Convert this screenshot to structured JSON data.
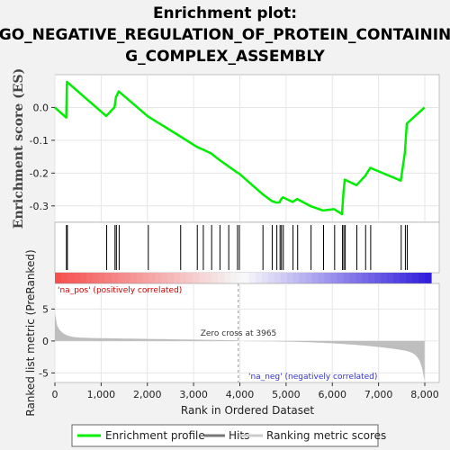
{
  "title_line1": "Enrichment plot:",
  "title_line2": "GO_NEGATIVE_REGULATION_OF_PROTEIN_CONTAININ",
  "title_line3": "G_COMPLEX_ASSEMBLY",
  "es_ylabel": "Enrichment score (ES)",
  "metric_ylabel": "Ranked list metric (PreRanked)",
  "xlabel": "Rank in Ordered Dataset",
  "pos_label": "'na_pos' (positively correlated)",
  "neg_label": "'na_neg' (negatively correlated)",
  "zero_cross_label": "Zero cross at 3965",
  "legend": {
    "enrichment": "Enrichment profile",
    "hits": "Hits",
    "ranking": "Ranking metric scores"
  },
  "colors": {
    "enrichment_line": "#00ee00",
    "hits": "#000000",
    "ranking_fill": "#bebebe",
    "pos_label": "#cc0000",
    "neg_label": "#3333cc"
  },
  "chart_data": {
    "type": "line",
    "x_range": [
      0,
      8000
    ],
    "es_ylim": [
      -0.35,
      0.1
    ],
    "es_yticks": [
      0.0,
      -0.1,
      -0.2,
      -0.3
    ],
    "metric_ylim": [
      -6.5,
      9
    ],
    "metric_yticks": [
      5,
      0,
      -5
    ],
    "xticks": [
      0,
      1000,
      2000,
      3000,
      4000,
      5000,
      6000,
      7000,
      8000
    ],
    "zero_cross": 3965,
    "total_ranks": 7994,
    "hit_ranks": [
      250,
      270,
      1120,
      1300,
      1330,
      1390,
      2020,
      2720,
      3080,
      3210,
      3390,
      3570,
      3760,
      3950,
      3990,
      4500,
      4700,
      4800,
      4870,
      4900,
      4940,
      5150,
      5250,
      5540,
      5810,
      6050,
      6220,
      6250,
      6280,
      6530,
      6720,
      6830,
      7490,
      7580,
      7620
    ],
    "enrichment_profile": {
      "x": [
        0,
        245,
        260,
        1110,
        1290,
        1320,
        1380,
        2010,
        2710,
        3070,
        3200,
        3380,
        3560,
        3750,
        3940,
        3980,
        4490,
        4690,
        4790,
        4860,
        4890,
        4930,
        5140,
        5240,
        5530,
        5800,
        6040,
        6210,
        6240,
        6270,
        6520,
        6710,
        6820,
        7480,
        7570,
        7610,
        7994
      ],
      "es": [
        0.0,
        -0.031,
        0.078,
        -0.026,
        0.001,
        0.031,
        0.049,
        -0.027,
        -0.088,
        -0.12,
        -0.128,
        -0.14,
        -0.16,
        -0.179,
        -0.198,
        -0.201,
        -0.264,
        -0.285,
        -0.29,
        -0.289,
        -0.28,
        -0.274,
        -0.288,
        -0.279,
        -0.301,
        -0.314,
        -0.31,
        -0.325,
        -0.26,
        -0.22,
        -0.237,
        -0.209,
        -0.184,
        -0.223,
        -0.137,
        -0.049,
        0.0
      ]
    }
  }
}
